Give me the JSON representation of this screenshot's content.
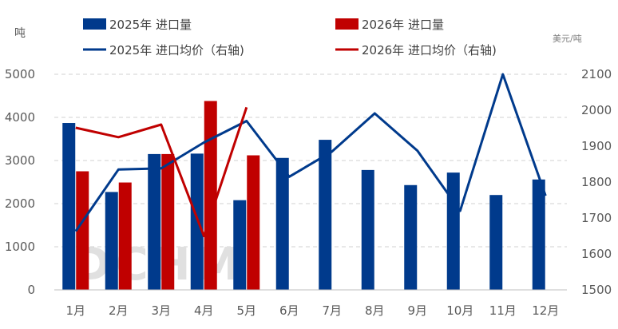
{
  "chart_data": {
    "type": "bar",
    "categories": [
      "1月",
      "2月",
      "3月",
      "4月",
      "5月",
      "6月",
      "7月",
      "8月",
      "9月",
      "10月",
      "11月",
      "12月"
    ],
    "series": [
      {
        "name": "2025年 进口量",
        "kind": "bar",
        "axis": "left",
        "color": "#003a8c",
        "values": [
          3870,
          2270,
          3150,
          3160,
          2080,
          3060,
          3480,
          2780,
          2430,
          2720,
          2200,
          2560
        ]
      },
      {
        "name": "2026年 进口量",
        "kind": "bar",
        "axis": "left",
        "color": "#c00000",
        "values": [
          2750,
          2490,
          3150,
          4380,
          3120,
          null,
          null,
          null,
          null,
          null,
          null,
          null
        ]
      },
      {
        "name": "2025年 进口均价（右轴)",
        "kind": "line",
        "axis": "right",
        "color": "#003a8c",
        "values": [
          1663,
          1835,
          1838,
          1910,
          1970,
          1815,
          1885,
          1991,
          1887,
          1720,
          2100,
          1762
        ]
      },
      {
        "name": "2026年 进口均价（右轴)",
        "kind": "line",
        "axis": "right",
        "color": "#c00000",
        "values": [
          1951,
          1925,
          1960,
          1650,
          2008,
          null,
          null,
          null,
          null,
          null,
          null,
          null
        ]
      }
    ],
    "left_axis": {
      "unit": "吨",
      "ylim": [
        0,
        5000
      ],
      "ticks": [
        "0",
        "1000",
        "2000",
        "3000",
        "4000",
        "5000"
      ]
    },
    "right_axis": {
      "unit": "美元/吨",
      "ylim": [
        1500,
        2100
      ],
      "ticks": [
        "1500",
        "1600",
        "1700",
        "1800",
        "1900",
        "2000",
        "2100"
      ]
    },
    "grid": true,
    "legend": {
      "position": "top"
    }
  }
}
